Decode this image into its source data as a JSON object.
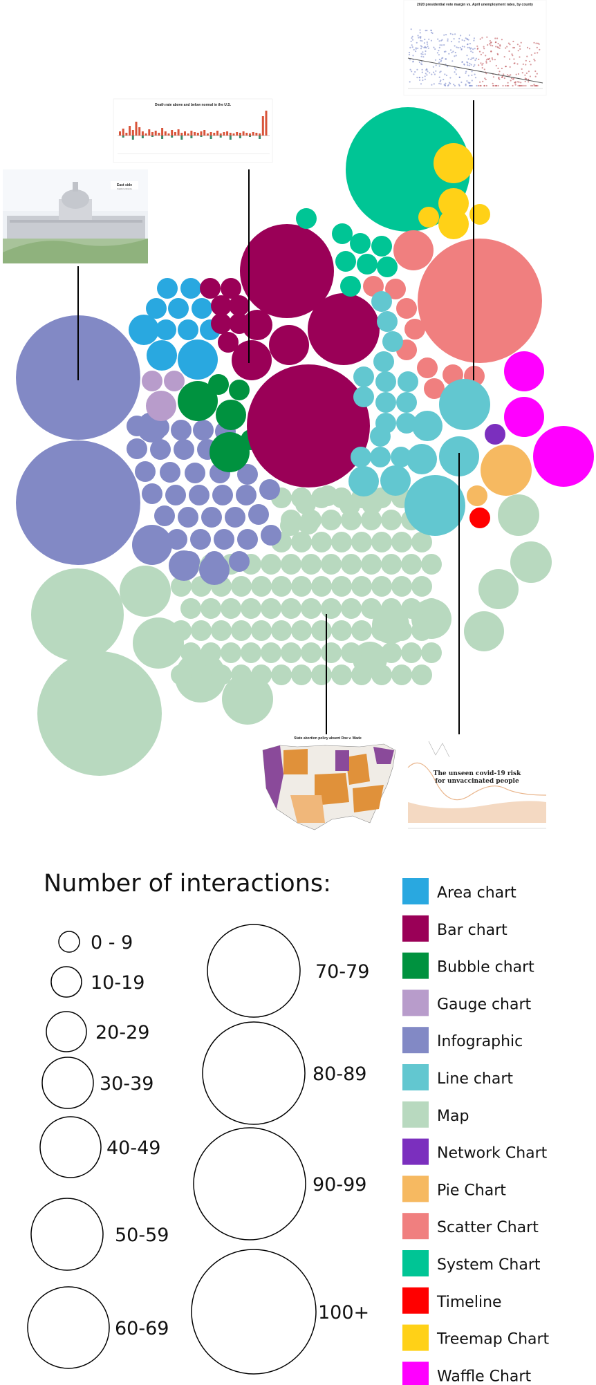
{
  "chart_data": {
    "type": "bubble-pack",
    "title": "",
    "categories": [
      {
        "key": "area",
        "label": "Area chart",
        "color": "#29a8e0"
      },
      {
        "key": "bar",
        "label": "Bar chart",
        "color": "#9a0057"
      },
      {
        "key": "bubble",
        "label": "Bubble chart",
        "color": "#00923f"
      },
      {
        "key": "gauge",
        "label": "Gauge chart",
        "color": "#b89ccb"
      },
      {
        "key": "infographic",
        "label": "Infographic",
        "color": "#8289c5"
      },
      {
        "key": "line",
        "label": "Line chart",
        "color": "#62c7d0"
      },
      {
        "key": "map",
        "label": "Map",
        "color": "#b8d9bf"
      },
      {
        "key": "network",
        "label": "Network Chart",
        "color": "#7b2fbe"
      },
      {
        "key": "pie",
        "label": "Pie Chart",
        "color": "#f6b961"
      },
      {
        "key": "scatter",
        "label": "Scatter Chart",
        "color": "#f07f7f"
      },
      {
        "key": "system",
        "label": "System Chart",
        "color": "#00c595"
      },
      {
        "key": "timeline",
        "label": "Timeline",
        "color": "#ff0000"
      },
      {
        "key": "treemap",
        "label": "Treemap Chart",
        "color": "#ffd117"
      },
      {
        "key": "waffle",
        "label": "Waffle Chart",
        "color": "#ff00ff"
      }
    ],
    "size_legend_title": "Number of interactions:",
    "size_bins": [
      "0 - 9",
      "10-19",
      "20-29",
      "30-39",
      "40-49",
      "50-59",
      "60-69",
      "70-79",
      "80-89",
      "90-99",
      "100+"
    ],
    "bubbles": [
      {
        "category": "infographic",
        "bin": "100+"
      },
      {
        "category": "infographic",
        "bin": "100+"
      },
      {
        "category": "map",
        "bin": "100+"
      },
      {
        "category": "map",
        "bin": "70-79"
      },
      {
        "category": "bar",
        "bin": "100+"
      },
      {
        "category": "bar",
        "bin": "70-79"
      },
      {
        "category": "bar",
        "bin": "50-59"
      },
      {
        "category": "system",
        "bin": "100+"
      },
      {
        "category": "scatter",
        "bin": "100+"
      },
      {
        "category": "line",
        "bin": "50-59"
      },
      {
        "category": "waffle",
        "bin": "50-59"
      }
    ]
  },
  "thumbnails": {
    "capitol": {
      "title": "East side",
      "subtitle": "Capitol entrance"
    },
    "bar_thumb": {
      "title": "Death rate above and below normal in the U.S."
    },
    "scatter_thumb": {
      "title": "2020 presidential vote margin vs. April unemployment rates, by county"
    },
    "map_thumb": {
      "title": "State abortion policy absent Roe v. Wade"
    },
    "line_thumb": {
      "title_line1": "The unseen covid-19 risk",
      "title_line2": "for unvaccinated people"
    }
  }
}
